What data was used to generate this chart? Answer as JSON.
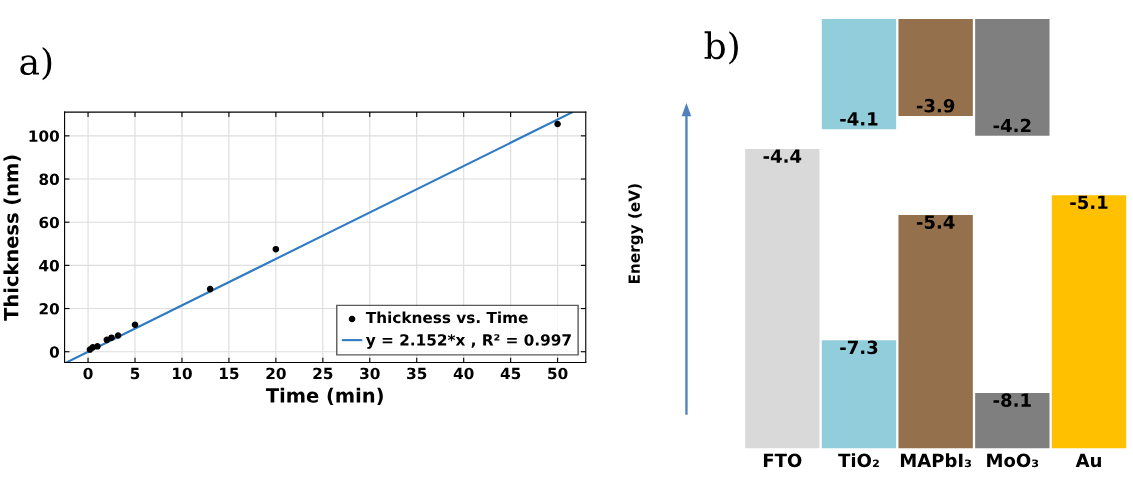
{
  "chart_data": [
    {
      "type": "scatter",
      "title": "a)",
      "xlabel": "Time (min)",
      "ylabel": "Thickness (nm)",
      "xlim": [
        -2.5,
        53
      ],
      "ylim": [
        -5,
        111
      ],
      "xticks": [
        0,
        5,
        10,
        15,
        20,
        25,
        30,
        35,
        40,
        45,
        50
      ],
      "yticks": [
        0,
        20,
        40,
        60,
        80,
        100
      ],
      "grid": true,
      "legend": "bottom right",
      "series": [
        {
          "name": "Thickness vs. Time",
          "color": "#000000",
          "marker": "circle",
          "x": [
            0.2,
            0.5,
            1,
            2,
            2.5,
            3.2,
            5,
            13,
            20,
            50
          ],
          "values": [
            1,
            2,
            2.5,
            5.5,
            6.5,
            7.5,
            12.5,
            29,
            47.5,
            105.5
          ]
        },
        {
          "name": "y = 2.152*x , R² = 0.997",
          "type": "line",
          "color": "#2e7bc4",
          "x": [
            -2.3,
            51.5
          ],
          "values": [
            -5,
            110.8
          ]
        }
      ]
    },
    {
      "type": "other",
      "title": "b)",
      "ylabel": "Energy (eV)",
      "categories": [
        "FTO",
        "TiO₂",
        "MAPbI₃",
        "MoO₃",
        "Au"
      ],
      "data_labels": true,
      "series": [
        {
          "colors": [
            "#d9d9d9",
            "#92cddc",
            "#94704c",
            "#7f7f7f",
            "#ffc000"
          ],
          "values": [
            null,
            -4.1,
            -3.9,
            -4.2,
            null
          ]
        },
        {
          "colors": [
            "#d9d9d9",
            "#92cddc",
            "#94704c",
            "#7f7f7f",
            "#ffc000"
          ],
          "values": [
            -4.4,
            -7.3,
            -5.4,
            -8.1,
            -5.1
          ]
        }
      ]
    }
  ]
}
